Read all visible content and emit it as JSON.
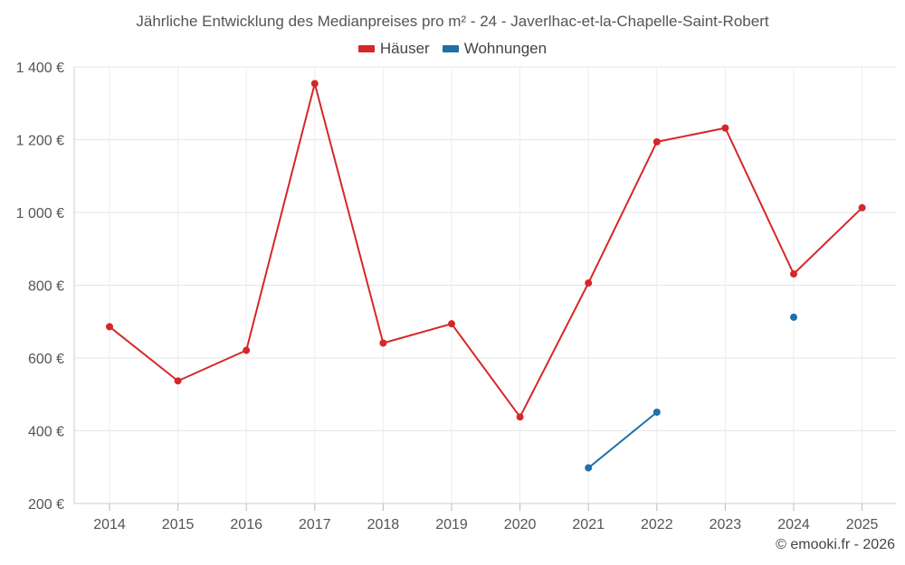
{
  "chart_data": {
    "type": "line",
    "title": "Jährliche Entwicklung des Medianpreises pro m² - 24 - Javerlhac-et-la-Chapelle-Saint-Robert",
    "categories": [
      "2014",
      "2015",
      "2016",
      "2017",
      "2018",
      "2019",
      "2020",
      "2021",
      "2022",
      "2023",
      "2024",
      "2025"
    ],
    "y_ticks": [
      200,
      400,
      600,
      800,
      1000,
      1200,
      1400
    ],
    "y_tick_labels": [
      "200 €",
      "400 €",
      "600 €",
      "800 €",
      "1 000 €",
      "1 200 €",
      "1 400 €"
    ],
    "ylim": [
      200,
      1400
    ],
    "grid": true,
    "legend_position": "top-center",
    "series": [
      {
        "name": "Häuser",
        "color": "#d62728",
        "values": [
          686,
          537,
          621,
          1354,
          641,
          694,
          438,
          806,
          1194,
          1232,
          831,
          1013
        ]
      },
      {
        "name": "Wohnungen",
        "color": "#1f6fa8",
        "values": [
          null,
          null,
          null,
          null,
          null,
          null,
          null,
          298,
          451,
          null,
          712,
          null
        ]
      }
    ]
  },
  "footer": {
    "credit": "© emooki.fr - 2026"
  }
}
